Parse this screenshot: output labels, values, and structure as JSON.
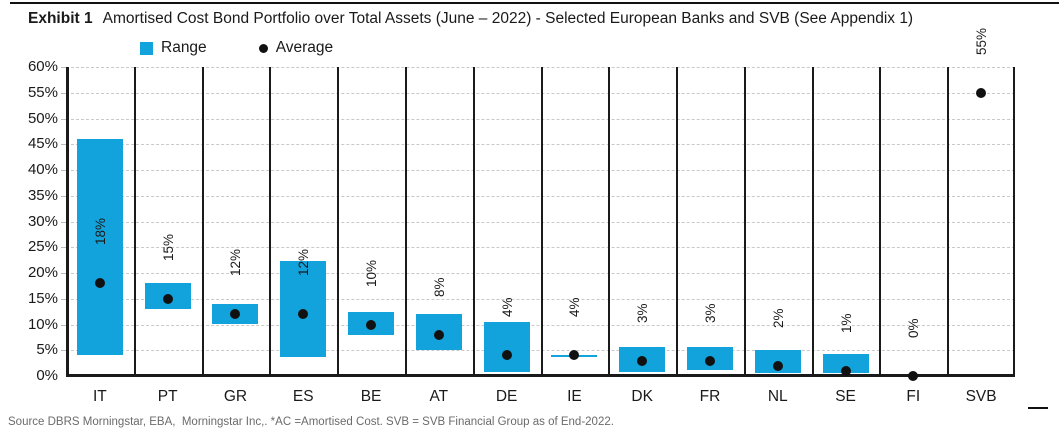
{
  "header": {
    "exhibit_label": "Exhibit 1",
    "title": "Amortised Cost Bond Portfolio over Total Assets (June – 2022) - Selected European Banks and SVB (See Appendix 1)"
  },
  "legend": {
    "items": [
      {
        "label": "Range",
        "marker": "square",
        "color": "#12A3DC"
      },
      {
        "label": "Average",
        "marker": "dot",
        "color": "#111111"
      }
    ]
  },
  "chart_data": {
    "type": "bar",
    "subtype": "floating range bars with average point markers",
    "title": "Amortised Cost Bond Portfolio over Total Assets (June – 2022) - Selected European Banks and SVB (See Appendix 1)",
    "categories": [
      "IT",
      "PT",
      "GR",
      "ES",
      "BE",
      "AT",
      "DE",
      "IE",
      "DK",
      "FR",
      "NL",
      "SE",
      "FI",
      "SVB"
    ],
    "series": [
      {
        "name": "Range",
        "type": "floating_bar",
        "color": "#12A3DC",
        "ranges_pct": [
          [
            4,
            46
          ],
          [
            13,
            18
          ],
          [
            10,
            14
          ],
          [
            3.7,
            22.3
          ],
          [
            8,
            12.5
          ],
          [
            5,
            12
          ],
          [
            0.7,
            10.5
          ],
          [
            3.6,
            4
          ],
          [
            0.7,
            5.7
          ],
          [
            1.2,
            5.6
          ],
          [
            0.6,
            5
          ],
          [
            0.6,
            4.3
          ],
          null,
          null
        ]
      },
      {
        "name": "Average",
        "type": "point",
        "color": "#111111",
        "values_pct": [
          18,
          15,
          12,
          12,
          10,
          8,
          4,
          4,
          3,
          3,
          2,
          1,
          0,
          55
        ],
        "point_labels": [
          "18%",
          "15%",
          "12%",
          "12%",
          "10%",
          "8%",
          "4%",
          "4%",
          "3%",
          "3%",
          "2%",
          "1%",
          "0%",
          "55%"
        ]
      }
    ],
    "ylim": [
      0,
      60
    ],
    "y_ticks_pct": [
      0,
      5,
      10,
      15,
      20,
      25,
      30,
      35,
      40,
      45,
      50,
      55,
      60
    ],
    "y_tick_labels": [
      "0%",
      "5%",
      "10%",
      "15%",
      "20%",
      "25%",
      "30%",
      "35%",
      "40%",
      "45%",
      "50%",
      "55%",
      "60%"
    ],
    "grid": {
      "horizontal": "dashed light gray every 5%",
      "vertical": "solid black category separators"
    },
    "legend_position": "top-left"
  },
  "footer": {
    "source": "Source DBRS Morningstar, EBA,  Morningstar Inc,. *AC =Amortised Cost. SVB = SVB Financial Group as of End-2022."
  }
}
